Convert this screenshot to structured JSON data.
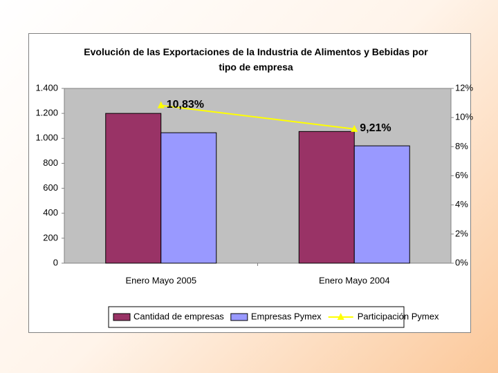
{
  "chart_data": {
    "type": "bar",
    "title": "Evolución de las Exportaciones de la Industria de Alimentos y Bebidas por tipo de empresa",
    "categories": [
      "Enero Mayo 2005",
      "Enero Mayo 2004"
    ],
    "series": [
      {
        "name": "Cantidad de empresas",
        "color": "#993366",
        "values": [
          1200,
          1055
        ]
      },
      {
        "name": "Empresas Pymex",
        "color": "#9999ff",
        "values": [
          1045,
          940
        ]
      },
      {
        "name": "Participación Pymex",
        "color": "#ffff00",
        "type": "line",
        "axis": "y2",
        "values": [
          10.83,
          9.21
        ],
        "value_labels": [
          "10,83%",
          "9,21%"
        ]
      }
    ],
    "ylim": [
      0,
      1400
    ],
    "yticks": [
      0,
      200,
      400,
      600,
      800,
      {
        "value": 1000,
        "label": "1.000"
      },
      {
        "value": 1200,
        "label": "1.200"
      },
      {
        "value": 1400,
        "label": "1.400"
      }
    ],
    "y2lim": [
      0,
      12
    ],
    "y2ticks": [
      {
        "value": 0,
        "label": "0%"
      },
      {
        "value": 2,
        "label": "2%"
      },
      {
        "value": 4,
        "label": "4%"
      },
      {
        "value": 6,
        "label": "6%"
      },
      {
        "value": 8,
        "label": "8%"
      },
      {
        "value": 10,
        "label": "10%"
      },
      {
        "value": 12,
        "label": "12%"
      }
    ],
    "plot_color": "#c0c0c0",
    "legend": "bottom"
  }
}
